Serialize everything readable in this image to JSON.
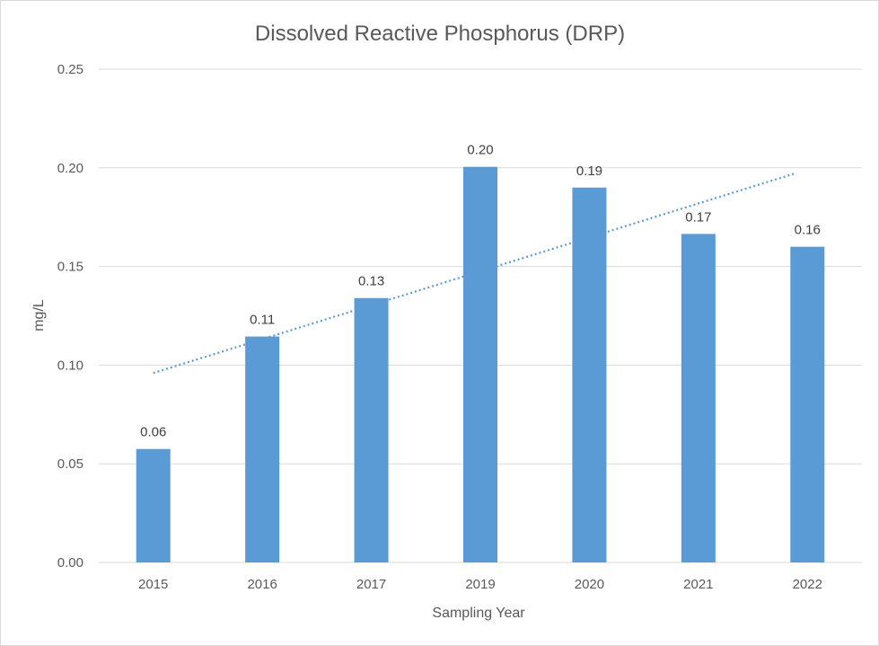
{
  "chart_data": {
    "type": "bar",
    "title": "Dissolved Reactive Phosphorus (DRP)",
    "xlabel": "Sampling Year",
    "ylabel": "mg/L",
    "categories": [
      "2015",
      "2016",
      "2017",
      "2019",
      "2020",
      "2021",
      "2022"
    ],
    "values": [
      0.0575,
      0.1145,
      0.134,
      0.2005,
      0.19,
      0.1665,
      0.16
    ],
    "data_labels": [
      "0.06",
      "0.11",
      "0.13",
      "0.20",
      "0.19",
      "0.17",
      "0.16"
    ],
    "ylim": [
      0,
      0.25
    ],
    "yticks": [
      "0.00",
      "0.05",
      "0.10",
      "0.15",
      "0.20",
      "0.25"
    ],
    "grid": true,
    "legend": "none",
    "trendline": {
      "type": "linear",
      "style": "dotted",
      "start_value": 0.096,
      "end_value": 0.197
    },
    "colors": {
      "bar": "#5b9bd5",
      "trendline": "#5b9bd5",
      "grid": "#d9d9d9",
      "text": "#595959"
    }
  }
}
